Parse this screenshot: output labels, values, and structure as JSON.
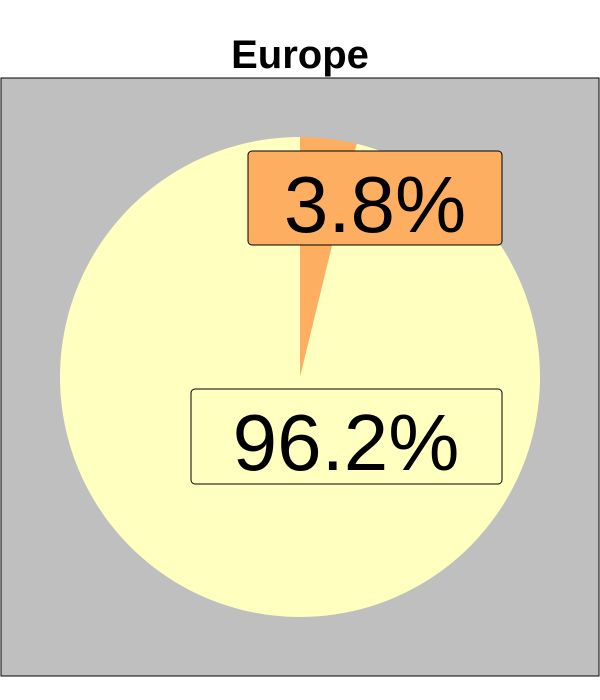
{
  "chart_data": {
    "type": "pie",
    "title": "Europe",
    "slices": [
      {
        "value": 3.8,
        "label": "3.8%",
        "color": "#fdae61"
      },
      {
        "value": 96.2,
        "label": "96.2%",
        "color": "#ffffbf"
      }
    ],
    "start_angle_deg": 0,
    "direction": "clockwise",
    "colors": {
      "panel_background": "#bfbfbf",
      "border": "#000000",
      "label_border": "#000000",
      "label_text": "#000000"
    },
    "legend": "none",
    "grid": false
  }
}
